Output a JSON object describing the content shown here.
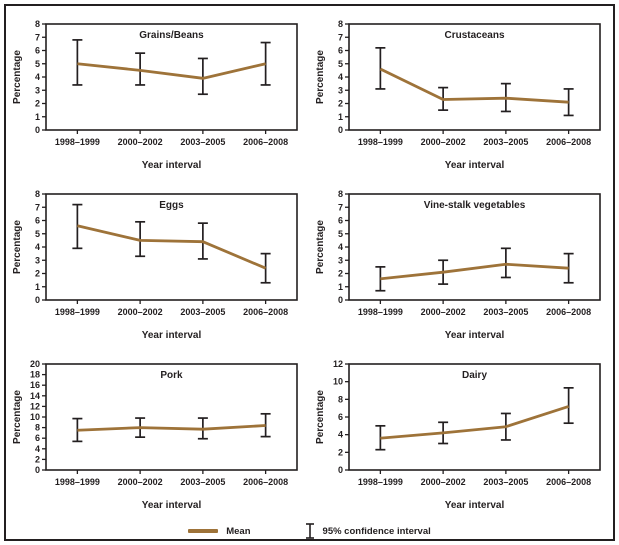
{
  "figure": {
    "ylabel": "Percentage",
    "xlabel": "Year interval",
    "categories": [
      "1998–1999",
      "2000–2002",
      "2003–2005",
      "2006–2008"
    ],
    "colors": {
      "ink": "#231f20",
      "mean_line": "#9e7339",
      "background": "#ffffff"
    },
    "legend": {
      "mean_label": "Mean",
      "ci_label": "95% confidence interval"
    }
  },
  "chart_data": [
    {
      "type": "line",
      "title": "Grains/Beans",
      "xlabel": "Year interval",
      "ylabel": "Percentage",
      "categories": [
        "1998–1999",
        "2000–2002",
        "2003–2005",
        "2006–2008"
      ],
      "ylim": [
        0,
        8
      ],
      "ytick_step": 1,
      "series": [
        {
          "name": "Mean",
          "values": [
            5.0,
            4.5,
            3.9,
            5.0
          ]
        }
      ],
      "ci_low": [
        3.4,
        3.4,
        2.7,
        3.4
      ],
      "ci_high": [
        6.8,
        5.8,
        5.4,
        6.6
      ]
    },
    {
      "type": "line",
      "title": "Crustaceans",
      "xlabel": "Year interval",
      "ylabel": "Percentage",
      "categories": [
        "1998–1999",
        "2000–2002",
        "2003–2005",
        "2006–2008"
      ],
      "ylim": [
        0,
        8
      ],
      "ytick_step": 1,
      "series": [
        {
          "name": "Mean",
          "values": [
            4.6,
            2.3,
            2.4,
            2.1
          ]
        }
      ],
      "ci_low": [
        3.1,
        1.5,
        1.4,
        1.1
      ],
      "ci_high": [
        6.2,
        3.2,
        3.5,
        3.1
      ]
    },
    {
      "type": "line",
      "title": "Eggs",
      "xlabel": "Year interval",
      "ylabel": "Percentage",
      "categories": [
        "1998–1999",
        "2000–2002",
        "2003–2005",
        "2006–2008"
      ],
      "ylim": [
        0,
        8
      ],
      "ytick_step": 1,
      "series": [
        {
          "name": "Mean",
          "values": [
            5.6,
            4.5,
            4.4,
            2.4
          ]
        }
      ],
      "ci_low": [
        3.9,
        3.3,
        3.1,
        1.3
      ],
      "ci_high": [
        7.2,
        5.9,
        5.8,
        3.5
      ]
    },
    {
      "type": "line",
      "title": "Vine-stalk vegetables",
      "xlabel": "Year interval",
      "ylabel": "Percentage",
      "categories": [
        "1998–1999",
        "2000–2002",
        "2003–2005",
        "2006–2008"
      ],
      "ylim": [
        0,
        8
      ],
      "ytick_step": 1,
      "series": [
        {
          "name": "Mean",
          "values": [
            1.6,
            2.1,
            2.7,
            2.4
          ]
        }
      ],
      "ci_low": [
        0.7,
        1.2,
        1.7,
        1.3
      ],
      "ci_high": [
        2.5,
        3.0,
        3.9,
        3.5
      ]
    },
    {
      "type": "line",
      "title": "Pork",
      "xlabel": "Year interval",
      "ylabel": "Percentage",
      "categories": [
        "1998–1999",
        "2000–2002",
        "2003–2005",
        "2006–2008"
      ],
      "ylim": [
        0,
        20
      ],
      "ytick_step": 2,
      "series": [
        {
          "name": "Mean",
          "values": [
            7.5,
            8.0,
            7.7,
            8.4
          ]
        }
      ],
      "ci_low": [
        5.4,
        6.2,
        5.9,
        6.3
      ],
      "ci_high": [
        9.7,
        9.8,
        9.8,
        10.6
      ]
    },
    {
      "type": "line",
      "title": "Dairy",
      "xlabel": "Year interval",
      "ylabel": "Percentage",
      "categories": [
        "1998–1999",
        "2000–2002",
        "2003–2005",
        "2006–2008"
      ],
      "ylim": [
        0,
        12
      ],
      "ytick_step": 2,
      "series": [
        {
          "name": "Mean",
          "values": [
            3.6,
            4.2,
            4.9,
            7.2
          ]
        }
      ],
      "ci_low": [
        2.3,
        3.0,
        3.4,
        5.3
      ],
      "ci_high": [
        5.0,
        5.4,
        6.4,
        9.3
      ]
    }
  ]
}
